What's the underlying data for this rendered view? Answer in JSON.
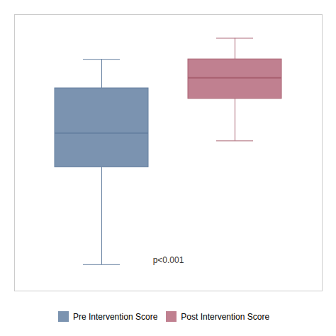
{
  "chart_data": {
    "type": "box",
    "series": [
      {
        "name": "Pre Intervention Score",
        "color": "#7B93B0",
        "edge_color": "#6680a0",
        "whisker_low": 5,
        "q1": 42,
        "median": 55,
        "q3": 72,
        "whisker_high": 83
      },
      {
        "name": "Post Intervention Score",
        "color": "#C08090",
        "edge_color": "#a86070",
        "whisker_low": 52,
        "q1": 68,
        "median": 76,
        "q3": 83,
        "whisker_high": 91
      }
    ],
    "annotations": [
      {
        "text": "p<0.001"
      }
    ],
    "ylim": [
      -5,
      100
    ],
    "grid": false,
    "tick_labels": false,
    "legend": "bottom"
  }
}
